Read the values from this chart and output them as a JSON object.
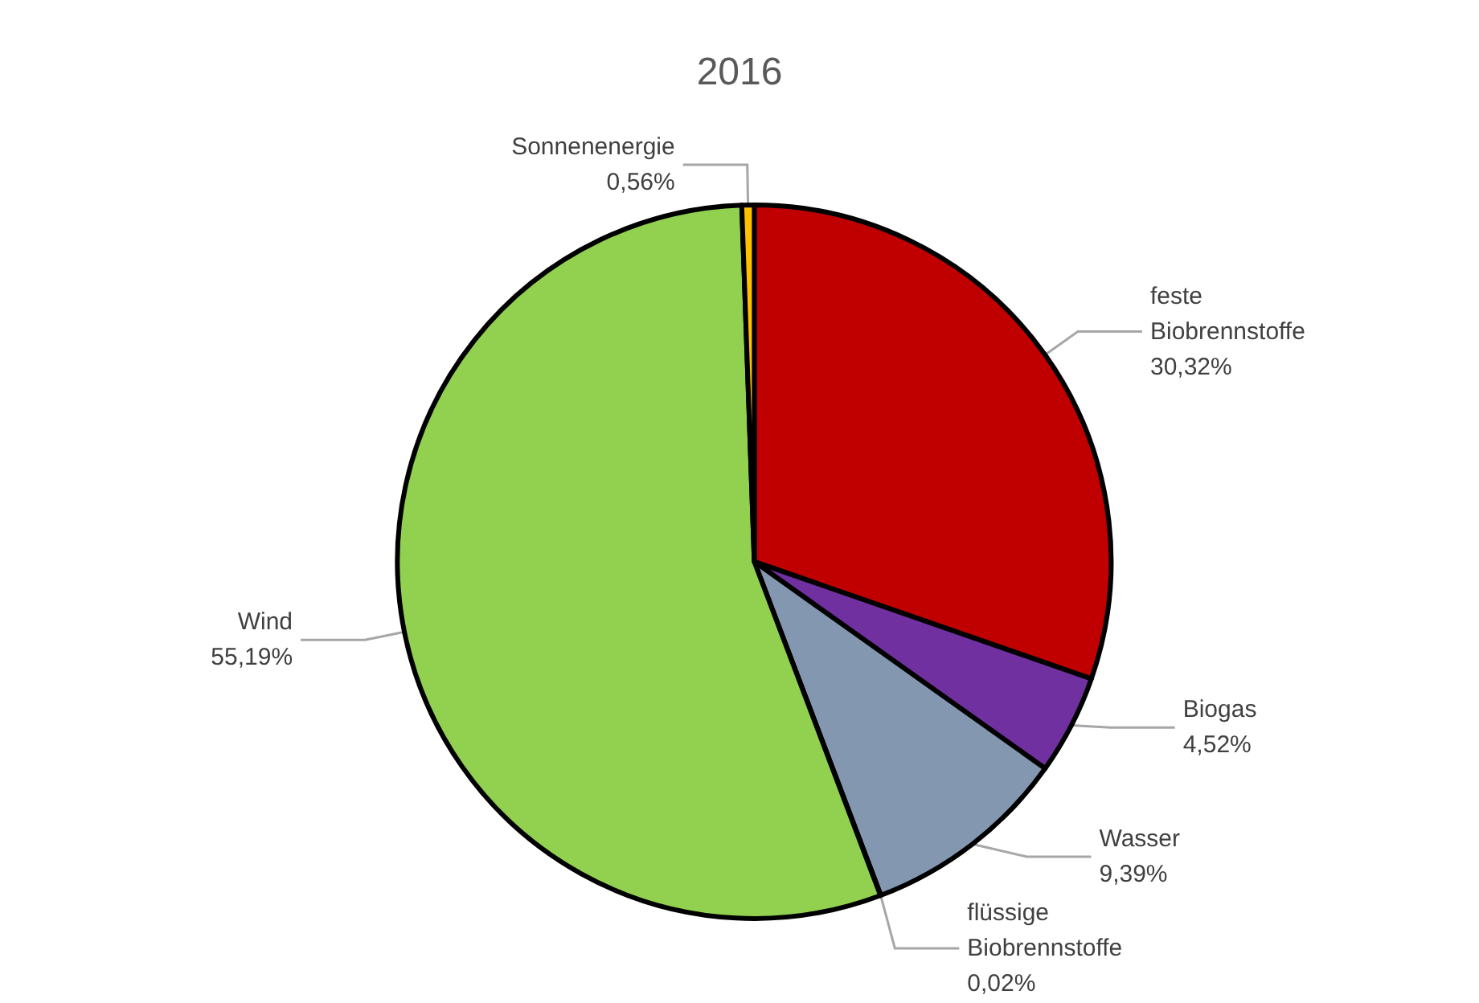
{
  "chart_data": {
    "type": "pie",
    "title": "2016",
    "categories": [
      "feste Biobrennstoffe",
      "Biogas",
      "Wasser",
      "flüssige Biobrennstoffe",
      "Wind",
      "Sonnenenergie"
    ],
    "values": [
      30.32,
      4.52,
      9.39,
      0.02,
      55.19,
      0.56
    ],
    "value_labels": [
      "30,32%",
      "4,52%",
      "9,39%",
      "0,02%",
      "55,19%",
      "0,56%"
    ],
    "colors": [
      "#c00000",
      "#7030a0",
      "#8497b0",
      "#00b0f0",
      "#92d050",
      "#ffc000"
    ],
    "legend": false
  }
}
